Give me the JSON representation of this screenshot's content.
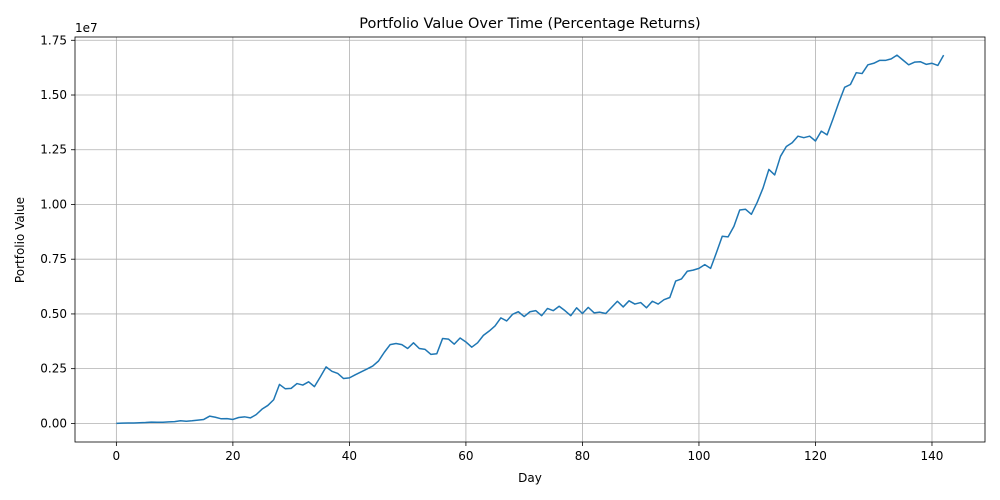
{
  "chart_data": {
    "type": "line",
    "title": "Portfolio Value Over Time (Percentage Returns)",
    "xlabel": "Day",
    "ylabel": "Portfolio Value",
    "y_offset_label": "1e7",
    "xlim": [
      -7.1,
      149.1
    ],
    "ylim": [
      -0.085,
      1.765
    ],
    "y_scale_factor": 10000000,
    "grid": true,
    "line_color": "#1f77b4",
    "x_ticks": [
      0,
      20,
      40,
      60,
      80,
      100,
      120,
      140
    ],
    "x_tick_labels": [
      "0",
      "20",
      "40",
      "60",
      "80",
      "100",
      "120",
      "140"
    ],
    "y_ticks": [
      0.0,
      0.25,
      0.5,
      0.75,
      1.0,
      1.25,
      1.5,
      1.75
    ],
    "y_tick_labels": [
      "0.00",
      "0.25",
      "0.50",
      "0.75",
      "1.00",
      "1.25",
      "1.50",
      "1.75"
    ],
    "series": [
      {
        "x": [
          0,
          1,
          2,
          3,
          4,
          5,
          6,
          7,
          8,
          9,
          10,
          11,
          12,
          13,
          14,
          15,
          16,
          17,
          18,
          19,
          20,
          21,
          22,
          23,
          24,
          25,
          26,
          27,
          28,
          29,
          30,
          31,
          32,
          33,
          34,
          35,
          36,
          37,
          38,
          39,
          40,
          41,
          42,
          43,
          44,
          45,
          46,
          47,
          48,
          49,
          50,
          51,
          52,
          53,
          54,
          55,
          56,
          57,
          58,
          59,
          60,
          61,
          62,
          63,
          64,
          65,
          66,
          67,
          68,
          69,
          70,
          71,
          72,
          73,
          74,
          75,
          76,
          77,
          78,
          79,
          80,
          81,
          82,
          83,
          84,
          85,
          86,
          87,
          88,
          89,
          90,
          91,
          92,
          93,
          94,
          95,
          96,
          97,
          98,
          99,
          100,
          101,
          102,
          103,
          104,
          105,
          106,
          107,
          108,
          109,
          110,
          111,
          112,
          113,
          114,
          115,
          116,
          117,
          118,
          119,
          120,
          121,
          122,
          123,
          124,
          125,
          126,
          127,
          128,
          129,
          130,
          131,
          132,
          133,
          134,
          135,
          136,
          137,
          138,
          139,
          140,
          141,
          142
        ],
        "y": [
          0.0,
          0.001,
          0.002,
          0.002,
          0.003,
          0.004,
          0.006,
          0.005,
          0.005,
          0.007,
          0.008,
          0.012,
          0.01,
          0.012,
          0.015,
          0.018,
          0.033,
          0.028,
          0.021,
          0.022,
          0.018,
          0.027,
          0.03,
          0.025,
          0.04,
          0.065,
          0.082,
          0.108,
          0.178,
          0.158,
          0.16,
          0.182,
          0.175,
          0.19,
          0.168,
          0.212,
          0.258,
          0.238,
          0.228,
          0.205,
          0.208,
          0.222,
          0.235,
          0.248,
          0.262,
          0.285,
          0.325,
          0.36,
          0.365,
          0.36,
          0.342,
          0.368,
          0.342,
          0.338,
          0.315,
          0.318,
          0.388,
          0.385,
          0.362,
          0.39,
          0.372,
          0.348,
          0.368,
          0.402,
          0.422,
          0.445,
          0.482,
          0.468,
          0.498,
          0.51,
          0.488,
          0.51,
          0.515,
          0.492,
          0.525,
          0.515,
          0.535,
          0.515,
          0.492,
          0.528,
          0.502,
          0.53,
          0.505,
          0.508,
          0.502,
          0.53,
          0.558,
          0.532,
          0.56,
          0.545,
          0.552,
          0.528,
          0.558,
          0.545,
          0.565,
          0.575,
          0.65,
          0.66,
          0.695,
          0.7,
          0.708,
          0.725,
          0.708,
          0.78,
          0.855,
          0.852,
          0.9,
          0.975,
          0.978,
          0.955,
          1.01,
          1.075,
          1.16,
          1.135,
          1.22,
          1.265,
          1.282,
          1.312,
          1.305,
          1.312,
          1.29,
          1.335,
          1.318,
          1.39,
          1.465,
          1.535,
          1.548,
          1.602,
          1.598,
          1.638,
          1.645,
          1.658,
          1.658,
          1.665,
          1.682,
          1.66,
          1.638,
          1.65,
          1.652,
          1.64,
          1.645,
          1.635,
          1.682
        ]
      }
    ]
  }
}
